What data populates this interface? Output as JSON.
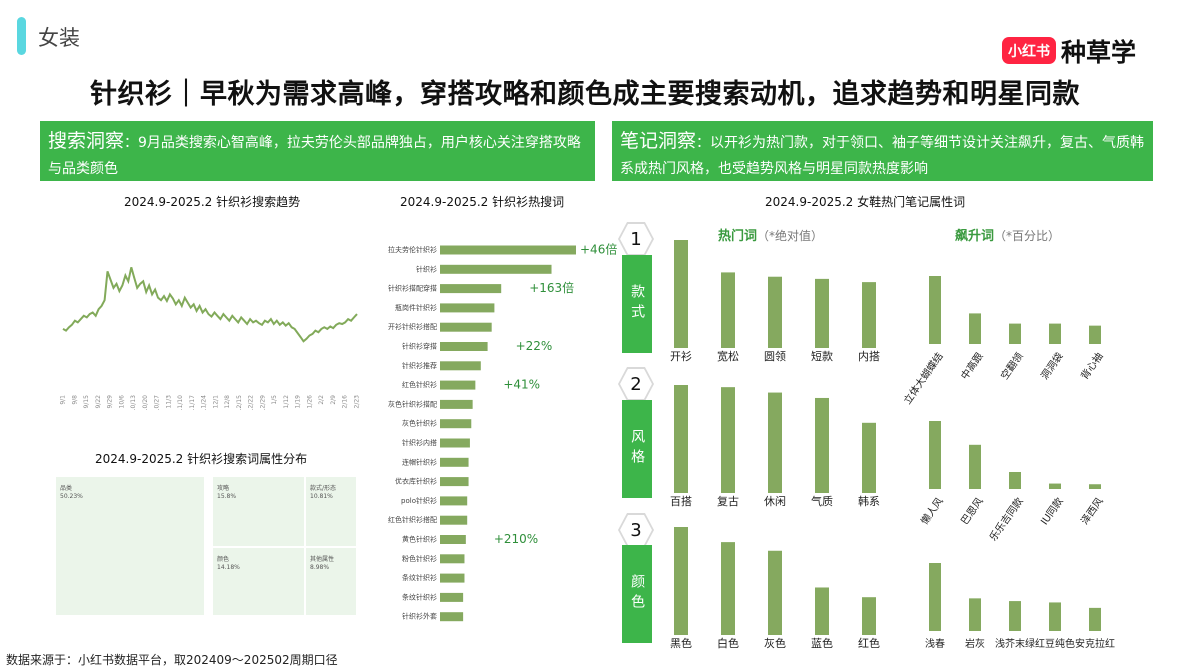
{
  "section_label": "女装",
  "brand": {
    "badge": "小红书",
    "name": "种草学"
  },
  "title": "针织衫｜早秋为需求高峰，穿搭攻略和颜色成主要搜索动机，追求趋势和明星同款",
  "insights": {
    "search": {
      "head": "搜索洞察",
      "body": "：9月品类搜索心智高峰，拉夫劳伦头部品牌独占，用户核心关注穿搭攻略与品类颜色"
    },
    "notes": {
      "head": "笔记洞察",
      "body": "：以开衫为热门款，对于领口、袖子等细节设计关注飙升，复古、气质韩系成热门风格，也受趋势风格与明星同款热度影响"
    }
  },
  "colors": {
    "bar": "#85a95f",
    "line": "#82aa5a",
    "accent": "#3db54a",
    "treemap": "#ebf5ea"
  },
  "chart_titles": {
    "trend": "2024.9-2025.2 针织衫搜索趋势",
    "hotwords": "2024.9-2025.2 针织衫热搜词",
    "treemap": "2024.9-2025.2 针织衫搜索词属性分布",
    "notes": "2024.9-2025.2 女鞋热门笔记属性词"
  },
  "sub_headers": {
    "hot": {
      "main": "热门词",
      "note": "（*绝对值）"
    },
    "rising": {
      "main": "飙升词",
      "note": "（*百分比）"
    }
  },
  "source": "数据来源于：小红书数据平台，取202409～202502周期口径",
  "chart_data": [
    {
      "type": "line",
      "title": "2024.9-2025.2 针织衫搜索趋势",
      "x_ticks": [
        "9/1",
        "9/8",
        "9/15",
        "9/22",
        "9/29",
        "10/6",
        "10/13",
        "10/20",
        "10/27",
        "11/3",
        "11/10",
        "11/17",
        "11/24",
        "12/1",
        "12/8",
        "12/15",
        "12/22",
        "12/29",
        "1/5",
        "1/12",
        "1/19",
        "1/26",
        "2/2",
        "2/9",
        "2/16",
        "2/23"
      ],
      "values": [
        50,
        48,
        52,
        55,
        60,
        58,
        62,
        66,
        64,
        68,
        70,
        66,
        74,
        78,
        85,
        120,
        110,
        100,
        105,
        96,
        103,
        115,
        108,
        125,
        112,
        100,
        105,
        108,
        95,
        103,
        92,
        98,
        88,
        85,
        90,
        84,
        92,
        87,
        80,
        85,
        78,
        88,
        82,
        76,
        80,
        72,
        78,
        70,
        74,
        68,
        65,
        70,
        66,
        62,
        68,
        64,
        60,
        66,
        62,
        58,
        64,
        60,
        56,
        62,
        58,
        60,
        57,
        55,
        60,
        58,
        62,
        56,
        60,
        55,
        58,
        54,
        57,
        52,
        50,
        45,
        40,
        35,
        38,
        42,
        44,
        48,
        46,
        50,
        52,
        50,
        53,
        51,
        55,
        57,
        56,
        58,
        62,
        60,
        64,
        68
      ],
      "ylim": [
        0,
        140
      ]
    },
    {
      "type": "bar",
      "title": "2024.9-2025.2 针织衫热搜词",
      "orientation": "horizontal",
      "categories": [
        "拉夫劳伦针织衫",
        "针织衫",
        "针织衫搭配穿搭",
        "瓶岗件针织衫",
        "开衫针织衫搭配",
        "针织衫穿搭",
        "针织衫推荐",
        "红色针织衫",
        "灰色针织衫搭配",
        "灰色针织衫",
        "针织衫内搭",
        "连帽针织衫",
        "优衣库针织衫",
        "polo针织衫",
        "红色针织衫搭配",
        "黄色针织衫",
        "粉色针织衫",
        "条纹针织衫",
        "条纹针织衫",
        "针织衫外套"
      ],
      "values": [
        100,
        82,
        45,
        40,
        38,
        35,
        30,
        26,
        24,
        23,
        22,
        21,
        21,
        20,
        20,
        19,
        18,
        18,
        17,
        17
      ],
      "labels": [
        "+46倍",
        "",
        "+163倍",
        "",
        "",
        "+22%",
        "",
        "+41%",
        "",
        "",
        "",
        "",
        "",
        "",
        "",
        "+210%",
        "",
        "",
        "",
        ""
      ]
    },
    {
      "type": "table",
      "title": "2024.9-2025.2 针织衫搜索词属性分布",
      "categories": [
        "品类",
        "攻略",
        "颜色",
        "款式/形态",
        "其他属性"
      ],
      "values": [
        "50.23%",
        "15.8%",
        "14.18%",
        "10.81%",
        "8.98%"
      ]
    },
    {
      "type": "bar",
      "title": "2024.9-2025.2 女鞋热门笔记属性词",
      "groups": [
        {
          "label": "款式",
          "number": "1",
          "hot": {
            "categories": [
              "开衫",
              "宽松",
              "圆领",
              "短款",
              "内搭"
            ],
            "values": [
              100,
              70,
              66,
              64,
              61
            ]
          },
          "rising": {
            "categories": [
              "立体大蝴蝶结",
              "中高跟",
              "空翻领",
              "洞洞袋",
              "背心袖"
            ],
            "values": [
              100,
              45,
              30,
              30,
              27
            ]
          }
        },
        {
          "label": "风格",
          "number": "2",
          "hot": {
            "categories": [
              "百搭",
              "复古",
              "休闲",
              "气质",
              "韩系"
            ],
            "values": [
              100,
              98,
              93,
              88,
              65
            ]
          },
          "rising": {
            "categories": [
              "懒人风",
              "巴恩风",
              "乐乐吉同款",
              "IU同款",
              "泽西风"
            ],
            "values": [
              100,
              65,
              25,
              8,
              7
            ]
          }
        },
        {
          "label": "颜色",
          "number": "3",
          "hot": {
            "categories": [
              "黑色",
              "白色",
              "灰色",
              "蓝色",
              "红色"
            ],
            "values": [
              100,
              86,
              78,
              44,
              35
            ]
          },
          "rising": {
            "categories": [
              "浅春",
              "岩灰",
              "浅芥末绿",
              "红豆纯色",
              "安克拉红"
            ],
            "values": [
              100,
              48,
              44,
              42,
              34
            ]
          }
        }
      ]
    }
  ]
}
